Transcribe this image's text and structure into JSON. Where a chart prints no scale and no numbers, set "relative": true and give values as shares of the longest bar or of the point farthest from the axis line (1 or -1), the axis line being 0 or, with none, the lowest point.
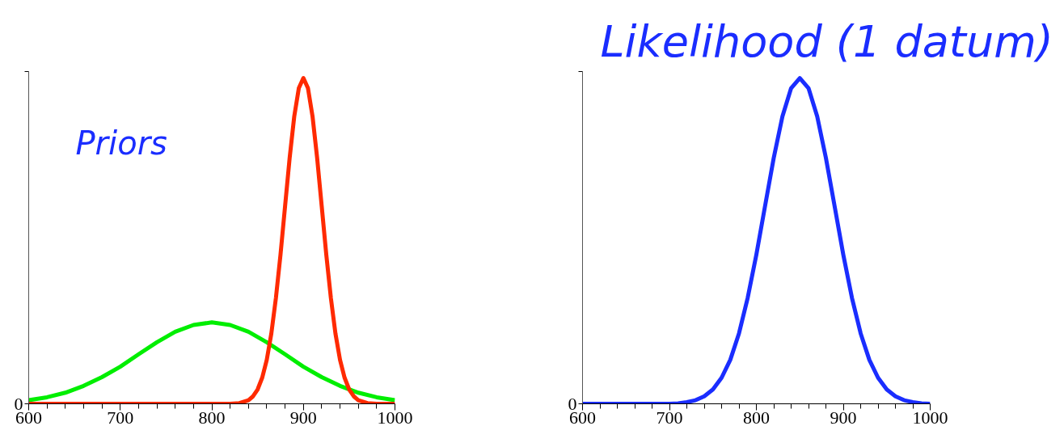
{
  "chart_data": [
    {
      "type": "line",
      "relative": true,
      "annotations": [
        "Priors",
        "0"
      ],
      "xlim": [
        600,
        1000
      ],
      "xticks": [
        600,
        {
          "value": 620,
          "label": null
        },
        {
          "value": 640,
          "label": null
        },
        {
          "value": 660,
          "label": null
        },
        {
          "value": 680,
          "label": null
        },
        700,
        {
          "value": 720,
          "label": null
        },
        {
          "value": 740,
          "label": null
        },
        {
          "value": 760,
          "label": null
        },
        {
          "value": 780,
          "label": null
        },
        800,
        {
          "value": 820,
          "label": null
        },
        {
          "value": 840,
          "label": null
        },
        {
          "value": 860,
          "label": null
        },
        {
          "value": 880,
          "label": null
        },
        900,
        {
          "value": 920,
          "label": null
        },
        {
          "value": 940,
          "label": null
        },
        {
          "value": 960,
          "label": null
        },
        {
          "value": 980,
          "label": null
        },
        1000
      ],
      "grid": false,
      "marker": "none",
      "line_style": "solid",
      "series": [
        {
          "color": "#00ee00",
          "x": [
            600,
            620,
            640,
            660,
            680,
            700,
            720,
            740,
            760,
            780,
            800,
            820,
            840,
            860,
            880,
            900,
            920,
            940,
            960,
            980,
            1000
          ],
          "values": [
            0.011,
            0.02,
            0.034,
            0.055,
            0.082,
            0.114,
            0.152,
            0.189,
            0.221,
            0.242,
            0.25,
            0.242,
            0.221,
            0.189,
            0.152,
            0.114,
            0.082,
            0.055,
            0.034,
            0.02,
            0.011
          ]
        },
        {
          "color": "#ff2a00",
          "x": [
            600,
            820,
            830,
            840,
            845,
            850,
            855,
            860,
            865,
            870,
            875,
            880,
            885,
            890,
            895,
            900,
            905,
            910,
            915,
            920,
            925,
            930,
            935,
            940,
            945,
            950,
            955,
            960,
            970,
            980,
            1000
          ],
          "values": [
            0,
            0,
            0.002,
            0.011,
            0.023,
            0.044,
            0.08,
            0.135,
            0.216,
            0.325,
            0.458,
            0.607,
            0.755,
            0.882,
            0.969,
            1,
            0.969,
            0.882,
            0.755,
            0.607,
            0.458,
            0.325,
            0.216,
            0.135,
            0.08,
            0.044,
            0.023,
            0.011,
            0.002,
            0,
            0
          ]
        }
      ]
    },
    {
      "type": "line",
      "relative": true,
      "title": "Likelihood (1 datum)",
      "annotations": [
        "0"
      ],
      "xlim": [
        600,
        1000
      ],
      "xticks": [
        600,
        {
          "value": 620,
          "label": null
        },
        {
          "value": 640,
          "label": null
        },
        {
          "value": 660,
          "label": null
        },
        {
          "value": 680,
          "label": null
        },
        700,
        {
          "value": 720,
          "label": null
        },
        {
          "value": 740,
          "label": null
        },
        {
          "value": 760,
          "label": null
        },
        {
          "value": 780,
          "label": null
        },
        800,
        {
          "value": 820,
          "label": null
        },
        {
          "value": 840,
          "label": null
        },
        {
          "value": 860,
          "label": null
        },
        {
          "value": 880,
          "label": null
        },
        900,
        {
          "value": 920,
          "label": null
        },
        {
          "value": 940,
          "label": null
        },
        {
          "value": 960,
          "label": null
        },
        {
          "value": 980,
          "label": null
        },
        1000
      ],
      "grid": false,
      "marker": "none",
      "line_style": "solid",
      "series": [
        {
          "color": "#1a2dff",
          "x": [
            600,
            700,
            710,
            720,
            730,
            740,
            750,
            760,
            770,
            780,
            790,
            800,
            810,
            820,
            830,
            840,
            850,
            860,
            870,
            880,
            890,
            900,
            910,
            920,
            930,
            940,
            950,
            960,
            970,
            980,
            990,
            1000
          ],
          "values": [
            0,
            0,
            0.001,
            0.005,
            0.011,
            0.023,
            0.044,
            0.08,
            0.135,
            0.216,
            0.325,
            0.458,
            0.607,
            0.755,
            0.882,
            0.969,
            1,
            0.969,
            0.882,
            0.755,
            0.607,
            0.458,
            0.325,
            0.216,
            0.135,
            0.08,
            0.044,
            0.023,
            0.011,
            0.005,
            0.001,
            0
          ]
        }
      ]
    }
  ]
}
